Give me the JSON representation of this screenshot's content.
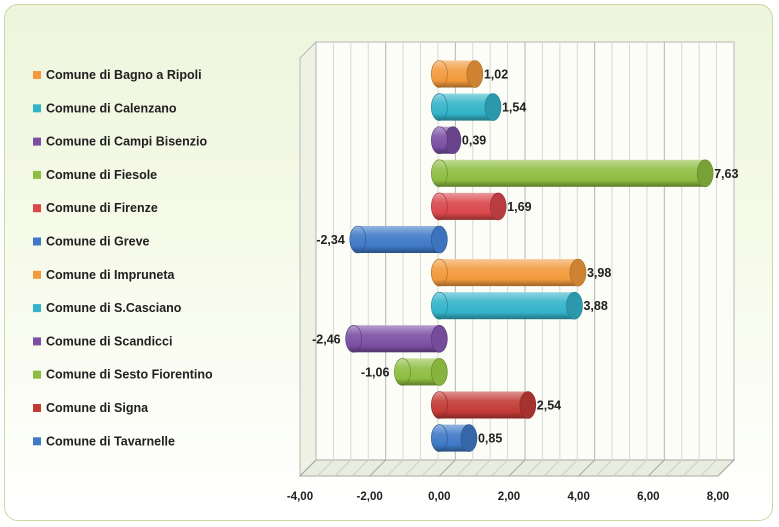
{
  "chart_data": {
    "type": "bar",
    "orientation": "horizontal",
    "categories": [
      "Comune di Bagno a Ripoli",
      "Comune di Calenzano",
      "Comune di Campi Bisenzio",
      "Comune di Fiesole",
      "Comune di Firenze",
      "Comune di Greve",
      "Comune di Impruneta",
      "Comune di S.Casciano",
      "Comune di Scandicci",
      "Comune di Sesto Fiorentino",
      "Comune di Signa",
      "Comune di Tavarnelle"
    ],
    "values": [
      1.02,
      1.54,
      0.39,
      7.63,
      1.69,
      -2.34,
      3.98,
      3.88,
      -2.46,
      -1.06,
      2.54,
      0.85
    ],
    "value_labels": [
      "1,02",
      "1,54",
      "0,39",
      "7,63",
      "1,69",
      "-2,34",
      "3,98",
      "3,88",
      "-2,46",
      "-1,06",
      "2,54",
      "0,85"
    ],
    "colors": [
      "#f29a3c",
      "#33b3c9",
      "#7b4fa3",
      "#8ebd41",
      "#d9474b",
      "#3f79c6",
      "#f29a3c",
      "#33b3c9",
      "#7b4fa3",
      "#8ebd41",
      "#c33b37",
      "#3f79c6"
    ],
    "xlim": [
      -4,
      8
    ],
    "xticks": [
      -4,
      -2,
      0,
      2,
      4,
      6,
      8
    ],
    "xtick_labels": [
      "-4,00",
      "-2,00",
      "0,00",
      "2,00",
      "4,00",
      "6,00",
      "8,00"
    ],
    "title": "",
    "xlabel": "",
    "ylabel": "",
    "grid": true,
    "legend_position": "left",
    "style": "3d-cylinder"
  }
}
